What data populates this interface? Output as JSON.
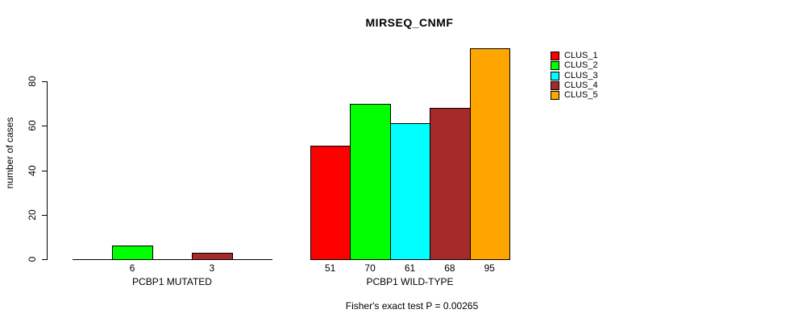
{
  "title": "MIRSEQ_CNMF",
  "footer": "Fisher's exact test P = 0.00265",
  "colors": {
    "background": "#FFFFFF",
    "axis": "#000000",
    "bar_border": "#000000"
  },
  "chart_data": {
    "type": "bar",
    "title": "MIRSEQ_CNMF",
    "xlabel": "",
    "ylabel": "number of cases",
    "ylim": [
      0,
      95
    ],
    "yticks": [
      0,
      20,
      40,
      60,
      80
    ],
    "grid": false,
    "legend_position": "right",
    "categories": [
      "PCBP1 MUTATED",
      "PCBP1 WILD-TYPE"
    ],
    "series": [
      {
        "name": "CLUS_1",
        "color": "#FF0000",
        "values": [
          0,
          51
        ]
      },
      {
        "name": "CLUS_2",
        "color": "#00FF00",
        "values": [
          6,
          70
        ]
      },
      {
        "name": "CLUS_3",
        "color": "#00FFFF",
        "values": [
          0,
          61
        ]
      },
      {
        "name": "CLUS_4",
        "color": "#A52A2A",
        "values": [
          3,
          68
        ]
      },
      {
        "name": "CLUS_5",
        "color": "#FFA500",
        "values": [
          0,
          95
        ]
      }
    ],
    "bar_value_labels_visible": [
      "6",
      "3",
      "51",
      "70",
      "61",
      "68",
      "95"
    ],
    "show_zero_value_labels": false,
    "annotation": "Fisher's exact test P = 0.00265"
  }
}
